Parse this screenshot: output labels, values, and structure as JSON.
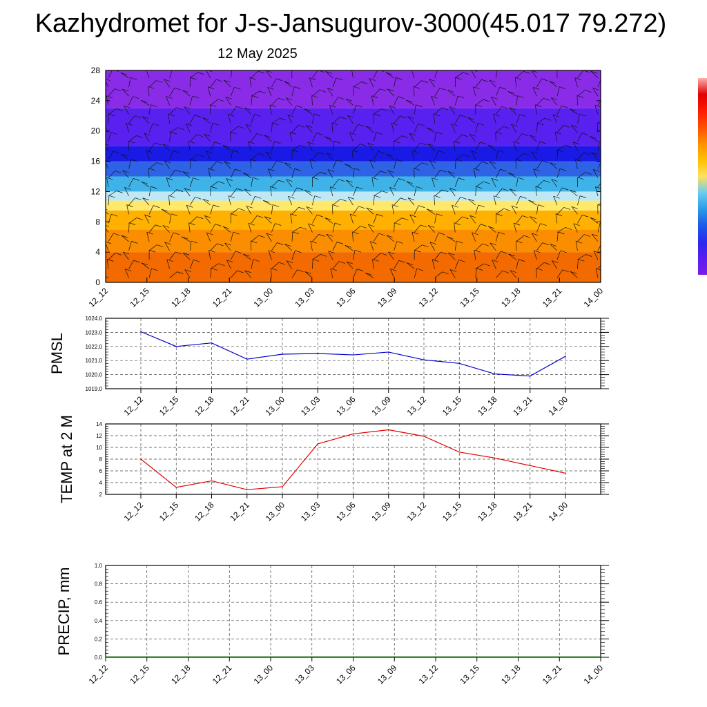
{
  "header": {
    "title": "Kazhydromet for J-s-Jansugurov-3000(45.017 79.272)",
    "date": "12 May 2025"
  },
  "chart_data": [
    {
      "type": "heatmap",
      "title": "",
      "ylabel": "",
      "ylim": [
        0,
        28
      ],
      "yticks": [
        "0",
        "4",
        "8",
        "12",
        "16",
        "20",
        "24",
        "28"
      ],
      "categories": [
        "12_12",
        "12_15",
        "12_18",
        "12_21",
        "13_00",
        "13_03",
        "13_06",
        "13_09",
        "13_12",
        "13_15",
        "13_18",
        "13_21",
        "14_00"
      ],
      "color_bands": [
        {
          "from": 0,
          "to": 4,
          "color": "#f26a00"
        },
        {
          "from": 4,
          "to": 7,
          "color": "#fb8d00"
        },
        {
          "from": 7,
          "to": 9.5,
          "color": "#ffb000"
        },
        {
          "from": 9.5,
          "to": 10.8,
          "color": "#ffe86a"
        },
        {
          "from": 10.8,
          "to": 12,
          "color": "#bfe8f5"
        },
        {
          "from": 12,
          "to": 14,
          "color": "#3fb3e8"
        },
        {
          "from": 14,
          "to": 16,
          "color": "#2e63e6"
        },
        {
          "from": 16,
          "to": 18,
          "color": "#1a1ae6"
        },
        {
          "from": 18,
          "to": 23,
          "color": "#5a20f0"
        },
        {
          "from": 23,
          "to": 28,
          "color": "#8a2be8"
        }
      ],
      "colorbar": [
        "#7a1ee8",
        "#5a1ef0",
        "#2a2af0",
        "#1a5ae8",
        "#2a9ae8",
        "#6accf0",
        "#ffe060",
        "#ffc000",
        "#ff9000",
        "#ff5000",
        "#ff1a00",
        "#e00000",
        "#ffb0b0"
      ]
    },
    {
      "type": "line",
      "ylabel": "PMSL",
      "ylim": [
        1019,
        1024
      ],
      "yticks": [
        "1019.0",
        "1020.0",
        "1021.0",
        "1022.0",
        "1023.0",
        "1024.0"
      ],
      "categories": [
        "12_12",
        "12_15",
        "12_18",
        "12_21",
        "13_00",
        "13_03",
        "13_06",
        "13_09",
        "13_12",
        "13_15",
        "13_18",
        "13_21",
        "14_00"
      ],
      "series": [
        {
          "values": [
            1023.05,
            1022.0,
            1022.25,
            1021.1,
            1021.45,
            1021.5,
            1021.4,
            1021.6,
            1021.05,
            1020.8,
            1020.05,
            1019.9,
            1021.3
          ],
          "color": "#0000cc"
        }
      ],
      "grid": true
    },
    {
      "type": "line",
      "ylabel": "TEMP at 2 M",
      "ylim": [
        2,
        14
      ],
      "yticks": [
        "2",
        "4",
        "6",
        "8",
        "10",
        "12",
        "14"
      ],
      "categories": [
        "12_12",
        "12_15",
        "12_18",
        "12_21",
        "13_00",
        "13_03",
        "13_06",
        "13_09",
        "13_12",
        "13_15",
        "13_18",
        "13_21",
        "14_00"
      ],
      "series": [
        {
          "values": [
            8.0,
            3.2,
            4.3,
            2.8,
            3.3,
            10.6,
            12.3,
            13.0,
            11.9,
            9.2,
            8.2,
            6.9,
            5.6
          ],
          "color": "#e00000"
        }
      ],
      "grid": true
    },
    {
      "type": "bar",
      "ylabel": "PRECIP, mm",
      "ylim": [
        0,
        1
      ],
      "yticks": [
        "0.0",
        "0.2",
        "0.4",
        "0.6",
        "0.8",
        "1.0"
      ],
      "categories": [
        "12_12",
        "12_15",
        "12_18",
        "12_21",
        "13_00",
        "13_03",
        "13_06",
        "13_09",
        "13_12",
        "13_15",
        "13_18",
        "13_21",
        "14_00"
      ],
      "values": [
        0,
        0,
        0,
        0,
        0,
        0,
        0,
        0,
        0,
        0,
        0,
        0,
        0
      ],
      "color": "#006400",
      "grid": true
    }
  ]
}
